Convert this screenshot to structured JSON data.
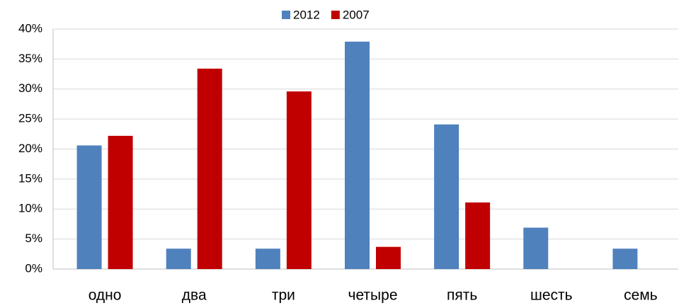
{
  "chart_data": {
    "type": "bar",
    "categories": [
      "одно",
      "два",
      "три",
      "четыре",
      "пять",
      "шесть",
      "семь"
    ],
    "series": [
      {
        "name": "2012",
        "color": "#4f81bd",
        "values": [
          20.6,
          3.4,
          3.4,
          37.9,
          24.1,
          6.9,
          3.4
        ]
      },
      {
        "name": "2007",
        "color": "#c00000",
        "values": [
          22.2,
          33.4,
          29.6,
          3.7,
          11.1,
          0,
          0
        ]
      }
    ],
    "ylim": [
      0,
      40
    ],
    "yticks": [
      {
        "value": 0,
        "label": "0%"
      },
      {
        "value": 5,
        "label": "5%"
      },
      {
        "value": 10,
        "label": "10%"
      },
      {
        "value": 15,
        "label": "15%"
      },
      {
        "value": 20,
        "label": "20%"
      },
      {
        "value": 25,
        "label": "25%"
      },
      {
        "value": 30,
        "label": "30%"
      },
      {
        "value": 35,
        "label": "35%"
      },
      {
        "value": 40,
        "label": "40%"
      }
    ],
    "grid": true,
    "legend": "top"
  }
}
